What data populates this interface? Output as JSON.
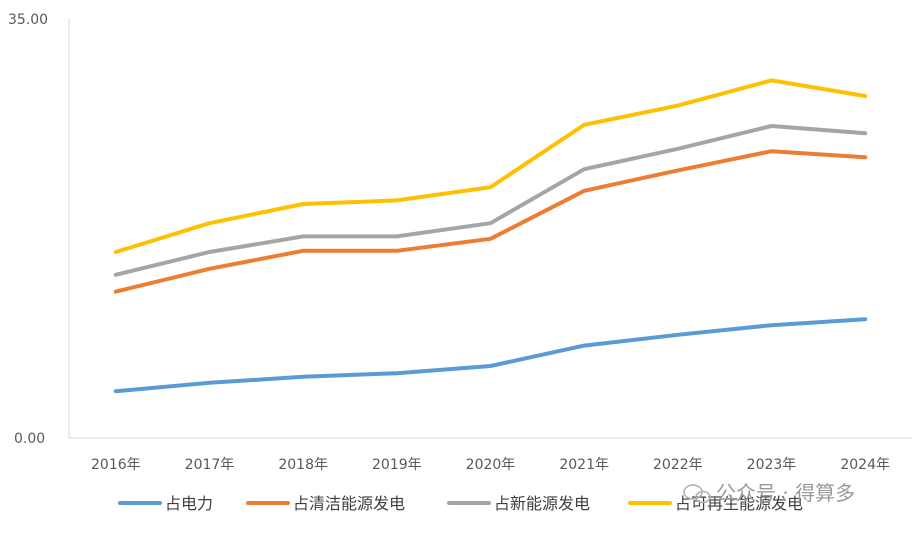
{
  "chart_data": {
    "type": "line",
    "categories": [
      "2016年",
      "2017年",
      "2018年",
      "2019年",
      "2020年",
      "2021年",
      "2022年",
      "2023年",
      "2024年"
    ],
    "ylim": [
      0,
      35
    ],
    "y_tick_labels": [
      "35.00",
      "0.00"
    ],
    "grid": false,
    "legend_position": "bottom",
    "series": [
      {
        "name": "占电力",
        "color": "#5b9bd5",
        "values": [
          3.9,
          4.6,
          5.1,
          5.4,
          6.0,
          7.7,
          8.6,
          9.4,
          9.9
        ]
      },
      {
        "name": "占清洁能源发电",
        "color": "#ed7d31",
        "values": [
          12.2,
          14.1,
          15.6,
          15.6,
          16.6,
          20.6,
          22.3,
          23.9,
          23.4
        ]
      },
      {
        "name": "占新能源发电",
        "color": "#a5a5a5",
        "values": [
          13.6,
          15.5,
          16.8,
          16.8,
          17.9,
          22.4,
          24.1,
          26.0,
          25.4
        ]
      },
      {
        "name": "占可再生能源发电",
        "color": "#ffc000",
        "values": [
          15.5,
          17.9,
          19.5,
          19.8,
          20.9,
          26.1,
          27.7,
          29.8,
          28.5
        ]
      }
    ]
  },
  "watermark": {
    "text": "公众号 · 得算多"
  }
}
